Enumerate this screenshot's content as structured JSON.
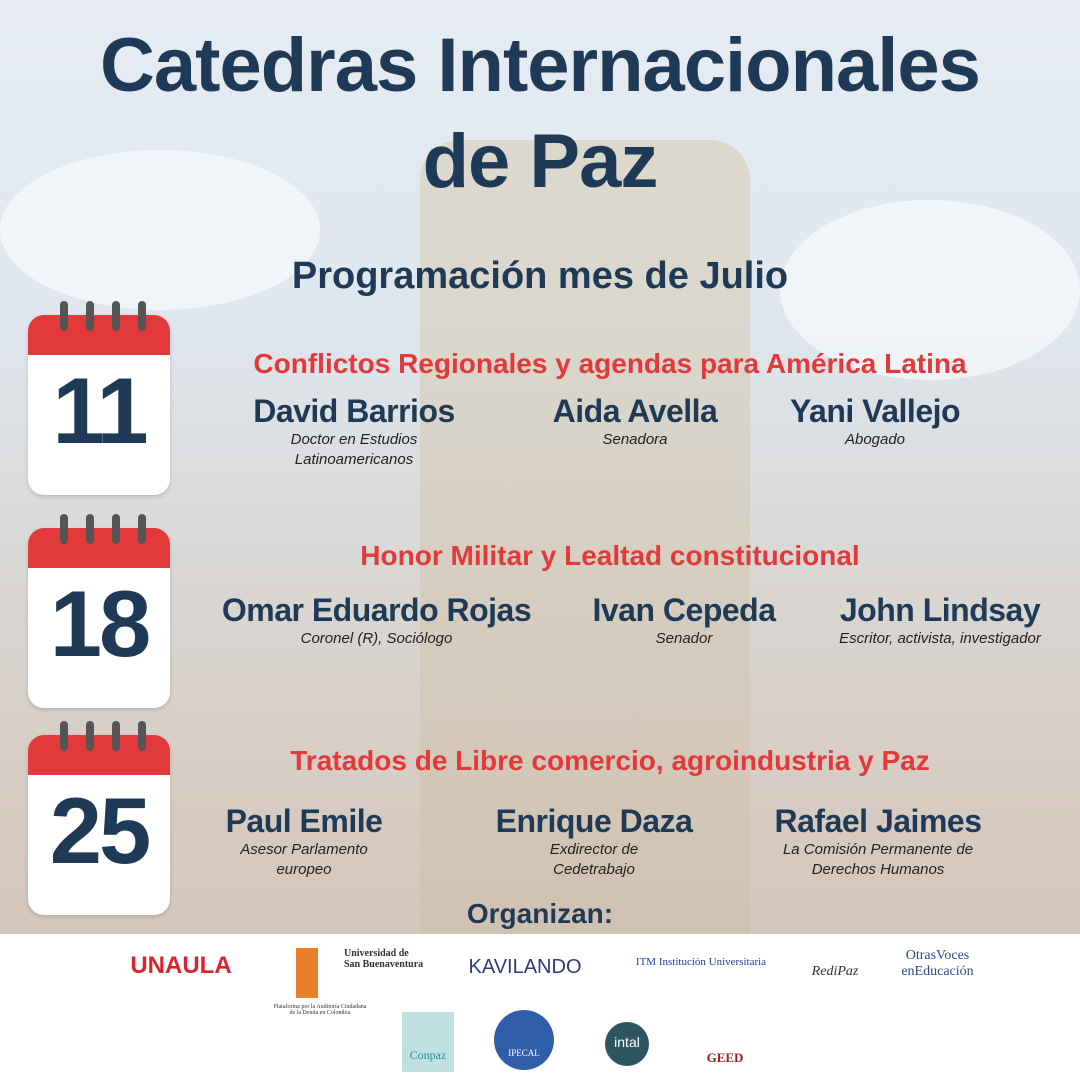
{
  "title": {
    "line1": "Catedras Internacionales",
    "line2": "de Paz"
  },
  "subtitle": "Programación mes de Julio",
  "colors": {
    "navy": "#1f3a56",
    "red": "#e23a3a"
  },
  "sessions": [
    {
      "day": "11",
      "topic": "Conflictos Regionales y agendas para América Latina",
      "speakers": [
        {
          "name": "David Barrios",
          "role": "Doctor en Estudios Latinoamericanos"
        },
        {
          "name": "Aida Avella",
          "role": "Senadora"
        },
        {
          "name": "Yani Vallejo",
          "role": "Abogado"
        }
      ]
    },
    {
      "day": "18",
      "topic": "Honor Militar y Lealtad constitucional",
      "speakers": [
        {
          "name": "Omar Eduardo Rojas",
          "role": "Coronel (R), Sociólogo"
        },
        {
          "name": "Ivan Cepeda",
          "role": "Senador"
        },
        {
          "name": "John Lindsay",
          "role": "Escritor, activista, investigador"
        }
      ]
    },
    {
      "day": "25",
      "topic": "Tratados de Libre comercio, agroindustria y Paz",
      "speakers": [
        {
          "name": "Paul Emile",
          "role": "Asesor Parlamento europeo"
        },
        {
          "name": "Enrique Daza",
          "role": "Exdirector de Cedetrabajo"
        },
        {
          "name": "Rafael Jaimes",
          "role": "La Comisión Permanente de Derechos Humanos"
        }
      ]
    }
  ],
  "organizers_label": "Organizan:",
  "logos": [
    "UNAULA",
    "Universidad de San Buenaventura",
    "KAVILANDO",
    "ITM Institución Universitaria",
    "RediPaz",
    "OtrasVoces enEducación",
    "Plataforma por la Auditoría Ciudadana de la Deuda en Colombia",
    "Conpaz",
    "IPECAL",
    "intal",
    "GEED"
  ]
}
